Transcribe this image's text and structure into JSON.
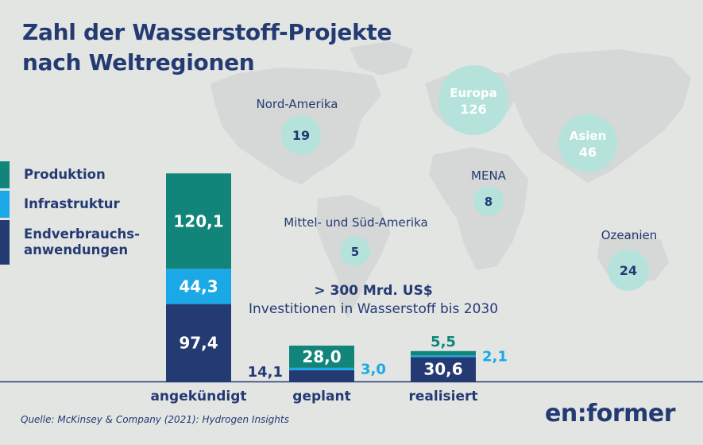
{
  "title_line1": "Zahl der Wasserstoff-Projekte",
  "title_line2": "nach Weltregionen",
  "legend": [
    {
      "label": "Produktion",
      "color": "#12857a"
    },
    {
      "label": "Infrastruktur",
      "color": "#1aa9e6"
    },
    {
      "label": "Endverbrauchs-",
      "label2": "anwendungen",
      "color": "#243a73"
    }
  ],
  "regions": [
    {
      "name": "Nord-Amerika",
      "count": "19",
      "value": 19,
      "label_inside": false
    },
    {
      "name": "Europa",
      "count": "126",
      "value": 126,
      "label_inside": true
    },
    {
      "name": "Asien",
      "count": "46",
      "value": 46,
      "label_inside": true
    },
    {
      "name": "MENA",
      "count": "8",
      "value": 8,
      "label_inside": false
    },
    {
      "name": "Mittel- und Süd-Amerika",
      "count": "5",
      "value": 5,
      "label_inside": false
    },
    {
      "name": "Ozeanien",
      "count": "24",
      "value": 24,
      "label_inside": false
    }
  ],
  "investment": {
    "value": "> 300 Mrd. US$",
    "description": "Investitionen in Wasserstoff bis 2030"
  },
  "chart_data": {
    "type": "bar",
    "stacked": true,
    "categories": [
      "angekündigt",
      "geplant",
      "realisiert"
    ],
    "series": [
      {
        "name": "Endverbrauchsanwendungen",
        "values": [
          97.4,
          14.1,
          30.6
        ],
        "labels": [
          "97,4",
          "14,1",
          "30,6"
        ],
        "color": "#243a73"
      },
      {
        "name": "Infrastruktur",
        "values": [
          44.3,
          3.0,
          2.1
        ],
        "labels": [
          "44,3",
          "3,0",
          "2,1"
        ],
        "color": "#1aa9e6"
      },
      {
        "name": "Produktion",
        "values": [
          120.1,
          28.0,
          5.5
        ],
        "labels": [
          "120,1",
          "28,0",
          "5,5"
        ],
        "color": "#12857a"
      }
    ]
  },
  "colors": {
    "background": "#e3e5e3",
    "navy": "#243a73",
    "teal": "#12857a",
    "cyan": "#1aa9e6",
    "bubble": "#b5e3dc",
    "bubble_strong": "#8fd6cc",
    "map": "#d5d8d6"
  },
  "source": "Quelle: McKinsey & Company (2021): Hydrogen Insights",
  "logo": "en:former"
}
